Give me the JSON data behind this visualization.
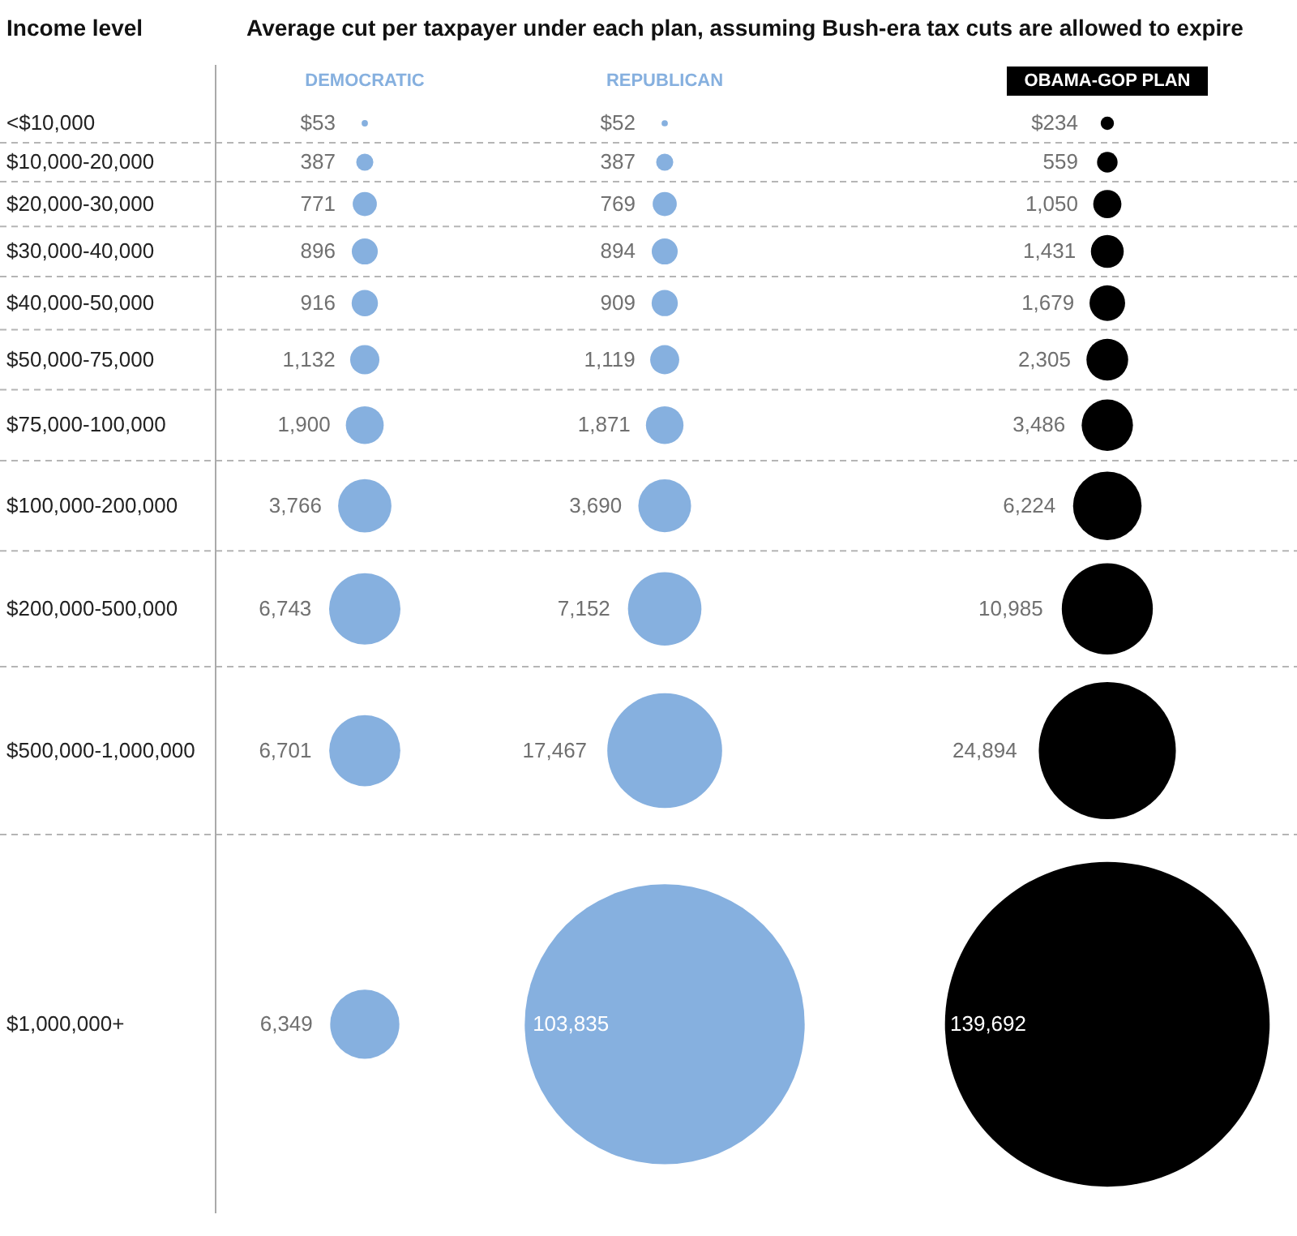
{
  "chart_data": {
    "type": "other",
    "title": "Average cut per taxpayer under each plan, assuming Bush-era tax cuts are allowed to expire",
    "ylabel": "Income level",
    "categories": [
      "<$10,000",
      "$10,000-20,000",
      "$20,000-30,000",
      "$30,000-40,000",
      "$40,000-50,000",
      "$50,000-75,000",
      "$75,000-100,000",
      "$100,000-200,000",
      "$200,000-500,000",
      "$500,000-1,000,000",
      "$1,000,000+"
    ],
    "series": [
      {
        "name": "DEMOCRATIC",
        "color": "#86b0df",
        "values": [
          53,
          387,
          771,
          896,
          916,
          1132,
          1900,
          3766,
          6743,
          6701,
          6349
        ],
        "value_labels": [
          "$53",
          "387",
          "771",
          "896",
          "916",
          "1,132",
          "1,900",
          "3,766",
          "6,743",
          "6,701",
          "6,349"
        ]
      },
      {
        "name": "REPUBLICAN",
        "color": "#86b0df",
        "values": [
          52,
          387,
          769,
          894,
          909,
          1119,
          1871,
          3690,
          7152,
          17467,
          103835
        ],
        "value_labels": [
          "$52",
          "387",
          "769",
          "894",
          "909",
          "1,119",
          "1,871",
          "3,690",
          "7,152",
          "17,467",
          "103,835"
        ]
      },
      {
        "name": "OBAMA-GOP PLAN",
        "color": "#000000",
        "values": [
          234,
          559,
          1050,
          1431,
          1679,
          2305,
          3486,
          6224,
          10985,
          24894,
          139692
        ],
        "value_labels": [
          "$234",
          "559",
          "1,050",
          "1,431",
          "1,679",
          "2,305",
          "3,486",
          "6,224",
          "10,985",
          "24,894",
          "139,692"
        ]
      }
    ]
  }
}
